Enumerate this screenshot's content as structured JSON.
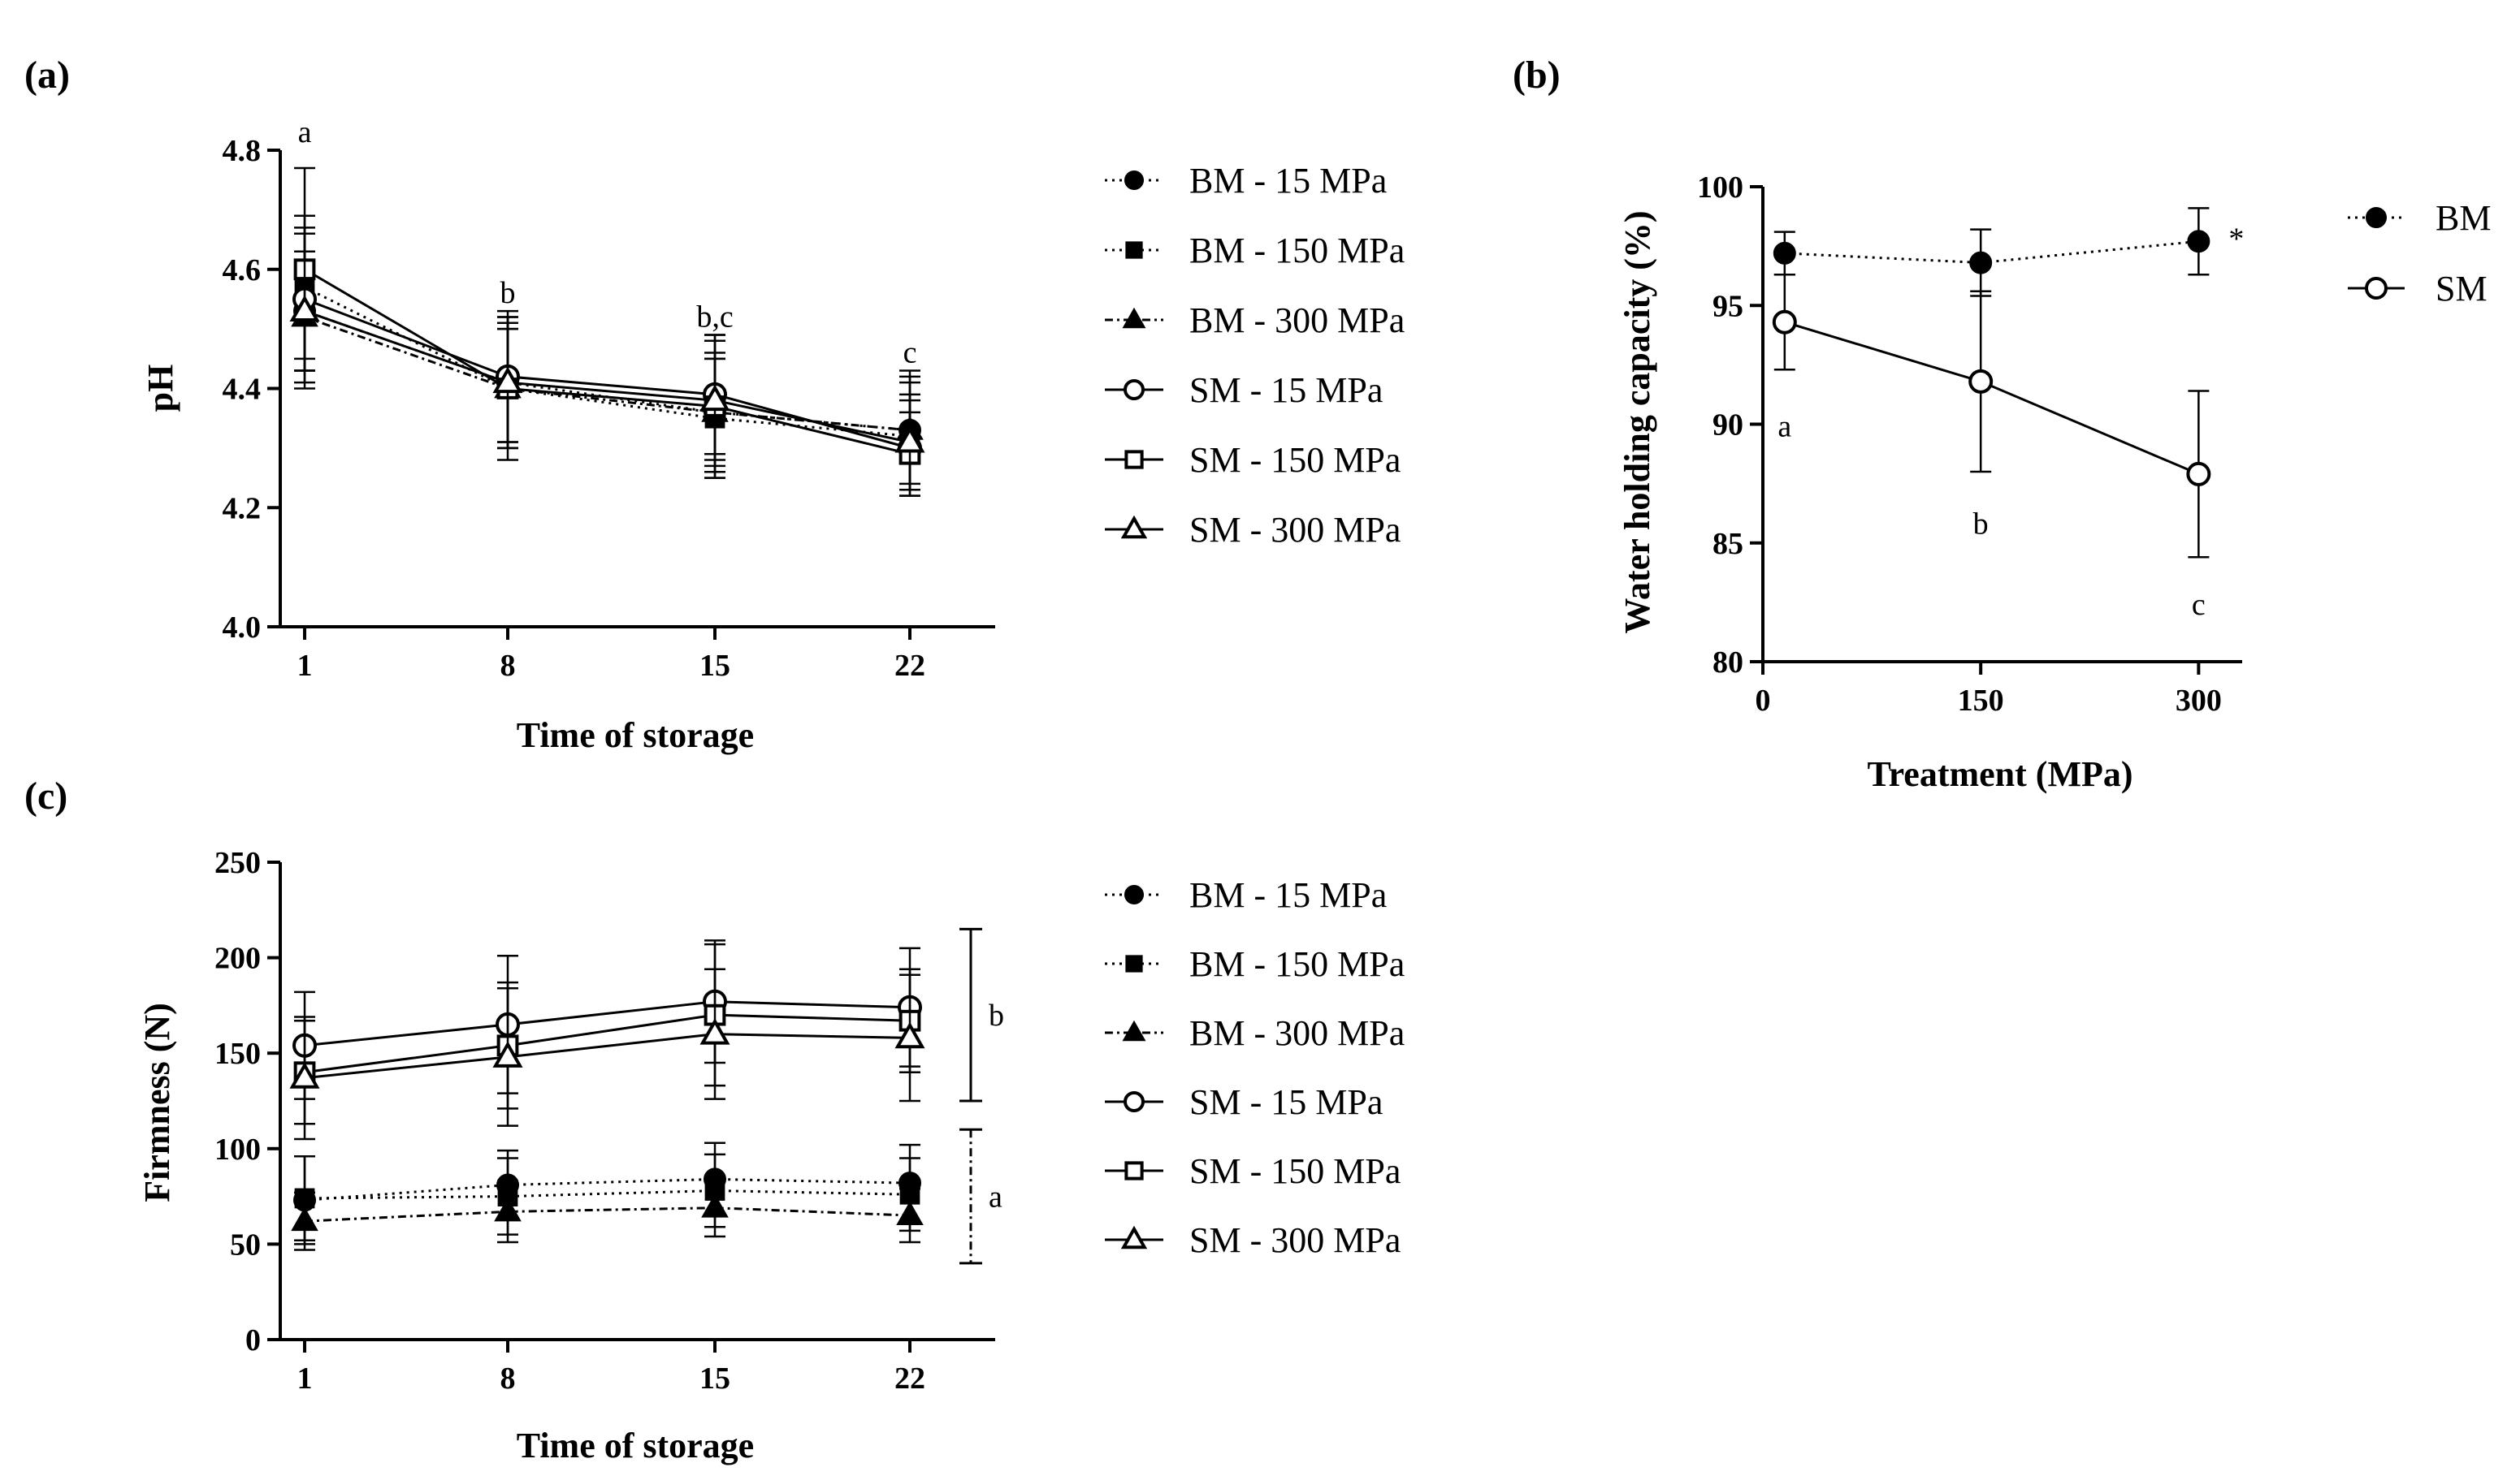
{
  "chart_data": [
    {
      "id": "a",
      "panel_label": "(a)",
      "type": "line",
      "xlabel": "Time of storage",
      "ylabel": "pH",
      "x": [
        1,
        8,
        15,
        22
      ],
      "x_ticks": [
        "1",
        "8",
        "15",
        "22"
      ],
      "ylim": [
        4.0,
        4.8
      ],
      "y_ticks": [
        "4.0",
        "4.2",
        "4.4",
        "4.6",
        "4.8"
      ],
      "legend_position": "right",
      "series": [
        {
          "name": "BM - 15 MPa",
          "marker": "circle-filled",
          "line": "dotted",
          "values": [
            4.53,
            4.41,
            4.36,
            4.33
          ],
          "errors": [
            0.1,
            0.11,
            0.09,
            0.1
          ]
        },
        {
          "name": "BM - 150 MPa",
          "marker": "square-filled",
          "line": "dotted",
          "values": [
            4.57,
            4.4,
            4.35,
            4.32
          ],
          "errors": [
            0.12,
            0.1,
            0.1,
            0.09
          ]
        },
        {
          "name": "BM - 300 MPa",
          "marker": "triangle-filled",
          "line": "dashdot",
          "values": [
            4.52,
            4.4,
            4.36,
            4.33
          ],
          "errors": [
            0.11,
            0.1,
            0.1,
            0.09
          ]
        },
        {
          "name": "SM - 15 MPa",
          "marker": "circle-open",
          "line": "solid",
          "values": [
            4.55,
            4.42,
            4.39,
            4.3
          ],
          "errors": [
            0.12,
            0.11,
            0.1,
            0.08
          ]
        },
        {
          "name": "SM - 150 MPa",
          "marker": "square-open",
          "line": "solid",
          "values": [
            4.6,
            4.4,
            4.37,
            4.29
          ],
          "errors": [
            0.17,
            0.12,
            0.12,
            0.07
          ]
        },
        {
          "name": "SM - 300 MPa",
          "marker": "triangle-open",
          "line": "solid",
          "values": [
            4.53,
            4.41,
            4.38,
            4.31
          ],
          "errors": [
            0.13,
            0.1,
            0.1,
            0.08
          ]
        }
      ],
      "annotations": [
        {
          "text": "a",
          "x": 1,
          "y": 4.83
        },
        {
          "text": "b",
          "x": 8,
          "y": 4.56
        },
        {
          "text": "b,c",
          "x": 15,
          "y": 4.52
        },
        {
          "text": "c",
          "x": 22,
          "y": 4.46
        }
      ]
    },
    {
      "id": "b",
      "panel_label": "(b)",
      "type": "line",
      "xlabel": "Treatment (MPa)",
      "ylabel": "Water holding capacity (%)",
      "x": [
        15,
        150,
        300
      ],
      "xlim": [
        0,
        330
      ],
      "x_ticks": [
        "0",
        "150",
        "300"
      ],
      "x_tick_values": [
        0,
        150,
        300
      ],
      "ylim": [
        80,
        100
      ],
      "y_ticks": [
        "80",
        "85",
        "90",
        "95",
        "100"
      ],
      "legend_position": "top-right",
      "series": [
        {
          "name": "BM",
          "marker": "circle-filled",
          "line": "dotted",
          "values": [
            97.2,
            96.8,
            97.7
          ],
          "errors": [
            0.9,
            1.4,
            1.4
          ]
        },
        {
          "name": "SM",
          "marker": "circle-open",
          "line": "solid",
          "values": [
            94.3,
            91.8,
            87.9
          ],
          "errors": [
            2.0,
            3.8,
            3.5
          ]
        }
      ],
      "annotations": [
        {
          "text": "a",
          "x": 15,
          "y": 89.9
        },
        {
          "text": "b",
          "x": 150,
          "y": 85.8
        },
        {
          "text": "c",
          "x": 300,
          "y": 82.4
        },
        {
          "text": "*",
          "x": 326,
          "y": 97.8
        }
      ]
    },
    {
      "id": "c",
      "panel_label": "(c)",
      "type": "line",
      "xlabel": "Time of storage",
      "ylabel": "Firmness (N)",
      "x": [
        1,
        8,
        15,
        22
      ],
      "x_ticks": [
        "1",
        "8",
        "15",
        "22"
      ],
      "ylim": [
        0,
        250
      ],
      "y_ticks": [
        "0",
        "50",
        "100",
        "150",
        "200",
        "250"
      ],
      "legend_position": "right",
      "series": [
        {
          "name": "BM - 15 MPa",
          "marker": "circle-filled",
          "line": "dotted",
          "values": [
            73,
            81,
            84,
            82
          ],
          "errors": [
            23,
            18,
            19,
            20
          ]
        },
        {
          "name": "BM - 150 MPa",
          "marker": "square-filled",
          "line": "dotted",
          "values": [
            74,
            75,
            78,
            76
          ],
          "errors": [
            22,
            20,
            19,
            19
          ]
        },
        {
          "name": "BM - 300 MPa",
          "marker": "triangle-filled",
          "line": "dashdot",
          "values": [
            62,
            67,
            69,
            65
          ],
          "errors": [
            15,
            16,
            15,
            14
          ]
        },
        {
          "name": "SM - 15 MPa",
          "marker": "circle-open",
          "line": "solid",
          "values": [
            154,
            165,
            177,
            174
          ],
          "errors": [
            28,
            36,
            32,
            31
          ]
        },
        {
          "name": "SM - 150 MPa",
          "marker": "square-open",
          "line": "solid",
          "values": [
            140,
            154,
            170,
            167
          ],
          "errors": [
            27,
            33,
            37,
            27
          ]
        },
        {
          "name": "SM - 300 MPa",
          "marker": "triangle-open",
          "line": "solid",
          "values": [
            137,
            148,
            160,
            158
          ],
          "errors": [
            32,
            36,
            34,
            33
          ]
        }
      ],
      "brackets": [
        {
          "label": "b",
          "y_range": [
            125,
            215
          ],
          "style": "solid"
        },
        {
          "label": "a",
          "y_range": [
            40,
            110
          ],
          "style": "dashdot"
        }
      ]
    }
  ]
}
